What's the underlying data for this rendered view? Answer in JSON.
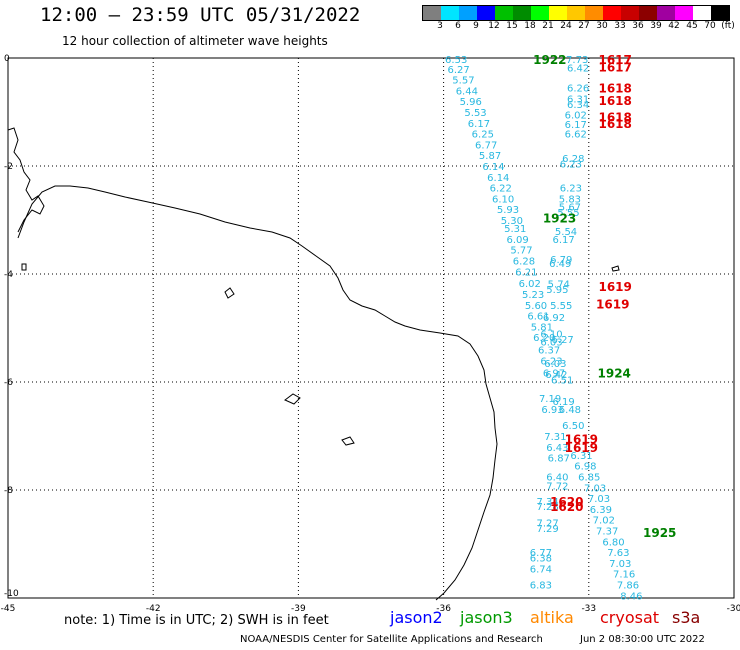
{
  "header": {
    "title": "12:00 – 23:59 UTC 05/31/2022",
    "subtitle": "12 hour collection of altimeter wave heights"
  },
  "legend": {
    "colors": [
      "#7f7f7f",
      "#00e5ff",
      "#00a0ff",
      "#0000ff",
      "#00c000",
      "#008c00",
      "#00ff00",
      "#ffff00",
      "#ffc800",
      "#ff8c00",
      "#ff0000",
      "#c80000",
      "#8c0000",
      "#a000a0",
      "#ff00ff",
      "#ffffff",
      "#000000"
    ],
    "ticks": [
      "3",
      "6",
      "9",
      "12",
      "15",
      "18",
      "21",
      "24",
      "27",
      "30",
      "33",
      "36",
      "39",
      "42",
      "45",
      "70",
      "(ft)"
    ]
  },
  "axes": {
    "y_ticks": [
      "0",
      "-2",
      "-4",
      "-6",
      "-8",
      "-10"
    ],
    "x_ticks": [
      "-45",
      "-42",
      "-39",
      "-36",
      "-33",
      "-30"
    ]
  },
  "data_color": "#29b8e0",
  "map_labels": {
    "times": [
      {
        "t": "1922",
        "c": "#008000",
        "lon": -34.15,
        "lat": -0.02
      },
      {
        "t": "1923",
        "c": "#008000",
        "lon": -33.95,
        "lat": -2.95
      },
      {
        "t": "1924",
        "c": "#008000",
        "lon": -32.82,
        "lat": -5.82
      },
      {
        "t": "1925",
        "c": "#008000",
        "lon": -31.88,
        "lat": -8.78
      },
      {
        "t": "1617",
        "c": "#e00000",
        "lon": -32.8,
        "lat": -0.02
      },
      {
        "t": "1617",
        "c": "#e00000",
        "lon": -32.8,
        "lat": -0.16
      },
      {
        "t": "1618",
        "c": "#e00000",
        "lon": -32.8,
        "lat": -0.55
      },
      {
        "t": "1618",
        "c": "#e00000",
        "lon": -32.8,
        "lat": -0.78
      },
      {
        "t": "1618",
        "c": "#e00000",
        "lon": -32.8,
        "lat": -1.08
      },
      {
        "t": "1618",
        "c": "#e00000",
        "lon": -32.8,
        "lat": -1.2
      },
      {
        "t": "1619",
        "c": "#e00000",
        "lon": -32.8,
        "lat": -4.22
      },
      {
        "t": "1619",
        "c": "#e00000",
        "lon": -32.85,
        "lat": -4.55
      },
      {
        "t": "1619",
        "c": "#e00000",
        "lon": -33.5,
        "lat": -7.05
      },
      {
        "t": "1619",
        "c": "#e00000",
        "lon": -33.5,
        "lat": -7.2
      },
      {
        "t": "1620",
        "c": "#e00000",
        "lon": -33.8,
        "lat": -8.2
      },
      {
        "t": "1620",
        "c": "#e00000",
        "lon": -33.8,
        "lat": -8.3
      }
    ],
    "values": [
      {
        "v": "6.53",
        "lon": -35.97,
        "lat": -0.02
      },
      {
        "v": "6.27",
        "lon": -35.92,
        "lat": -0.2
      },
      {
        "v": "5.57",
        "lon": -35.82,
        "lat": -0.4
      },
      {
        "v": "6.44",
        "lon": -35.75,
        "lat": -0.6
      },
      {
        "v": "5.96",
        "lon": -35.67,
        "lat": -0.8
      },
      {
        "v": "5.53",
        "lon": -35.57,
        "lat": -1.0
      },
      {
        "v": "6.17",
        "lon": -35.5,
        "lat": -1.2
      },
      {
        "v": "6.25",
        "lon": -35.42,
        "lat": -1.4
      },
      {
        "v": "6.77",
        "lon": -35.35,
        "lat": -1.6
      },
      {
        "v": "5.87",
        "lon": -35.27,
        "lat": -1.8
      },
      {
        "v": "6.14",
        "lon": -35.2,
        "lat": -2.0
      },
      {
        "v": "6.14",
        "lon": -35.1,
        "lat": -2.2
      },
      {
        "v": "6.22",
        "lon": -35.05,
        "lat": -2.4
      },
      {
        "v": "6.10",
        "lon": -35.0,
        "lat": -2.6
      },
      {
        "v": "5.93",
        "lon": -34.9,
        "lat": -2.8
      },
      {
        "v": "5.30",
        "lon": -34.82,
        "lat": -3.0
      },
      {
        "v": "5.31",
        "lon": -34.75,
        "lat": -3.15
      },
      {
        "v": "6.09",
        "lon": -34.7,
        "lat": -3.35
      },
      {
        "v": "5.77",
        "lon": -34.62,
        "lat": -3.55
      },
      {
        "v": "6.28",
        "lon": -34.57,
        "lat": -3.75
      },
      {
        "v": "6.21",
        "lon": -34.52,
        "lat": -3.95
      },
      {
        "v": "6.02",
        "lon": -34.45,
        "lat": -4.17
      },
      {
        "v": "5.23",
        "lon": -34.38,
        "lat": -4.37
      },
      {
        "v": "5.60",
        "lon": -34.32,
        "lat": -4.57
      },
      {
        "v": "6.61",
        "lon": -34.27,
        "lat": -4.77
      },
      {
        "v": "5.81",
        "lon": -34.2,
        "lat": -4.97
      },
      {
        "v": "6.20",
        "lon": -34.15,
        "lat": -5.17
      },
      {
        "v": "6.37",
        "lon": -34.05,
        "lat": -5.4
      },
      {
        "v": "6.23",
        "lon": -34.0,
        "lat": -5.6
      },
      {
        "v": "6.97",
        "lon": -33.95,
        "lat": -5.82
      },
      {
        "v": "7.19",
        "lon": -34.03,
        "lat": -6.3
      },
      {
        "v": "6.93",
        "lon": -33.98,
        "lat": -6.5
      },
      {
        "v": "7.31",
        "lon": -33.92,
        "lat": -7.0
      },
      {
        "v": "6.43",
        "lon": -33.88,
        "lat": -7.2
      },
      {
        "v": "6.87",
        "lon": -33.85,
        "lat": -7.4
      },
      {
        "v": "6.40",
        "lon": -33.88,
        "lat": -7.75
      },
      {
        "v": "7.72",
        "lon": -33.88,
        "lat": -7.92
      },
      {
        "v": "7.34",
        "lon": -34.08,
        "lat": -8.2
      },
      {
        "v": "7.28",
        "lon": -34.08,
        "lat": -8.3
      },
      {
        "v": "7.27",
        "lon": -34.08,
        "lat": -8.6
      },
      {
        "v": "7.29",
        "lon": -34.08,
        "lat": -8.7
      },
      {
        "v": "6.77",
        "lon": -34.22,
        "lat": -9.15
      },
      {
        "v": "6.38",
        "lon": -34.22,
        "lat": -9.25
      },
      {
        "v": "6.74",
        "lon": -34.22,
        "lat": -9.45
      },
      {
        "v": "6.83",
        "lon": -34.22,
        "lat": -9.75
      },
      {
        "v": "7.73",
        "lon": -33.47,
        "lat": -0.02
      },
      {
        "v": "6.42",
        "lon": -33.45,
        "lat": -0.18
      },
      {
        "v": "6.26",
        "lon": -33.45,
        "lat": -0.55
      },
      {
        "v": "6.31",
        "lon": -33.45,
        "lat": -0.75
      },
      {
        "v": "6.34",
        "lon": -33.45,
        "lat": -0.85
      },
      {
        "v": "6.02",
        "lon": -33.5,
        "lat": -1.05
      },
      {
        "v": "6.17",
        "lon": -33.5,
        "lat": -1.22
      },
      {
        "v": "6.62",
        "lon": -33.5,
        "lat": -1.4
      },
      {
        "v": "6.28",
        "lon": -33.55,
        "lat": -1.85
      },
      {
        "v": "6.23",
        "lon": -33.6,
        "lat": -1.95
      },
      {
        "v": "6.23",
        "lon": -33.6,
        "lat": -2.4
      },
      {
        "v": "5.83",
        "lon": -33.62,
        "lat": -2.6
      },
      {
        "v": "5.67",
        "lon": -33.62,
        "lat": -2.75
      },
      {
        "v": "5.55",
        "lon": -33.65,
        "lat": -2.85
      },
      {
        "v": "5.54",
        "lon": -33.7,
        "lat": -3.2
      },
      {
        "v": "6.17",
        "lon": -33.75,
        "lat": -3.35
      },
      {
        "v": "6.79",
        "lon": -33.8,
        "lat": -3.72
      },
      {
        "v": "6.49",
        "lon": -33.82,
        "lat": -3.8
      },
      {
        "v": "5.74",
        "lon": -33.85,
        "lat": -4.18
      },
      {
        "v": "5.95",
        "lon": -33.88,
        "lat": -4.28
      },
      {
        "v": "5.55",
        "lon": -33.8,
        "lat": -4.57
      },
      {
        "v": "6.92",
        "lon": -33.95,
        "lat": -4.8
      },
      {
        "v": "6.10",
        "lon": -34.0,
        "lat": -5.1
      },
      {
        "v": "6.03",
        "lon": -34.0,
        "lat": -5.25
      },
      {
        "v": "6.03",
        "lon": -33.92,
        "lat": -5.65
      },
      {
        "v": "6.42",
        "lon": -33.9,
        "lat": -5.85
      },
      {
        "v": "6.27",
        "lon": -33.77,
        "lat": -5.2
      },
      {
        "v": "6.51",
        "lon": -33.78,
        "lat": -5.95
      },
      {
        "v": "6.19",
        "lon": -33.75,
        "lat": -6.35
      },
      {
        "v": "6.48",
        "lon": -33.62,
        "lat": -6.5
      },
      {
        "v": "6.50",
        "lon": -33.55,
        "lat": -6.8
      },
      {
        "v": "6.31",
        "lon": -33.38,
        "lat": -7.35
      },
      {
        "v": "6.98",
        "lon": -33.3,
        "lat": -7.55
      },
      {
        "v": "6.85",
        "lon": -33.22,
        "lat": -7.75
      },
      {
        "v": "7.03",
        "lon": -33.1,
        "lat": -7.95
      },
      {
        "v": "7.03",
        "lon": -33.02,
        "lat": -8.15
      },
      {
        "v": "6.39",
        "lon": -32.98,
        "lat": -8.35
      },
      {
        "v": "7.02",
        "lon": -32.92,
        "lat": -8.55
      },
      {
        "v": "7.37",
        "lon": -32.85,
        "lat": -8.75
      },
      {
        "v": "6.80",
        "lon": -32.72,
        "lat": -8.95
      },
      {
        "v": "7.63",
        "lon": -32.62,
        "lat": -9.15
      },
      {
        "v": "7.03",
        "lon": -32.58,
        "lat": -9.35
      },
      {
        "v": "7.16",
        "lon": -32.5,
        "lat": -9.55
      },
      {
        "v": "7.86",
        "lon": -32.42,
        "lat": -9.75
      },
      {
        "v": "8.46",
        "lon": -32.35,
        "lat": -9.95
      }
    ]
  },
  "note": "note:  1) Time is in UTC;  2) SWH is in feet",
  "satellites": [
    {
      "name": "jason2",
      "color": "#0000ff"
    },
    {
      "name": "jason3",
      "color": "#009900"
    },
    {
      "name": "altika",
      "color": "#ff8800"
    },
    {
      "name": "cryosat",
      "color": "#dd0000"
    },
    {
      "name": "s3a",
      "color": "#880000"
    }
  ],
  "footer": {
    "left": "NOAA/NESDIS Center for Satellite Applications and Research",
    "right": "Jun  2 08:30:00 UTC 2022"
  }
}
